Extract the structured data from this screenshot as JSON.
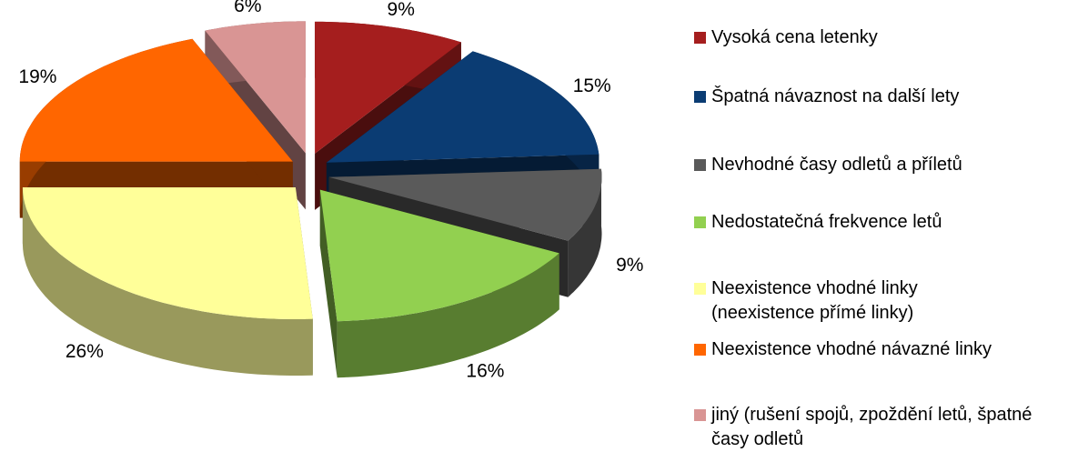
{
  "chart_data": {
    "type": "pie",
    "categories": [
      "Vysoká cena letenky",
      "Špatná návaznost na další lety",
      "Nevhodné časy odletů a příletů",
      "Nedostatečná frekvence letů",
      "Neexistence vhodné linky (neexistence přímé linky)",
      "Neexistence vhodné návazné linky",
      "jiný (rušení spojů, zpoždění letů, špatné časy odletů"
    ],
    "values": [
      9,
      15,
      9,
      16,
      26,
      19,
      6
    ],
    "value_labels": [
      "9%",
      "15%",
      "9%",
      "16%",
      "26%",
      "19%",
      "6%"
    ],
    "colors": [
      "#a51e1e",
      "#0b3c73",
      "#5a5a5a",
      "#92d050",
      "#ffff99",
      "#ff6600",
      "#d99594"
    ],
    "legend": "right"
  }
}
